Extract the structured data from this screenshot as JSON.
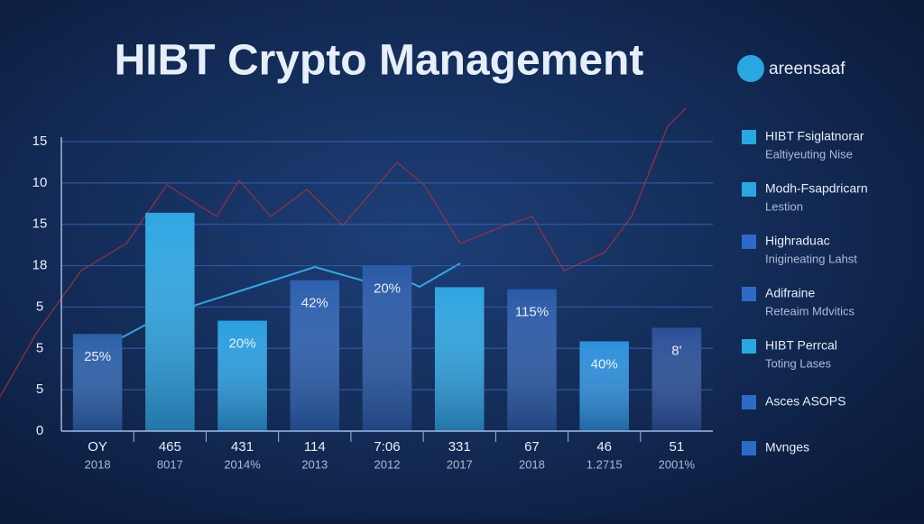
{
  "chart_data": {
    "type": "bar",
    "title": "HIBT Crypto Management",
    "brand": "areensaaf",
    "categories": [
      "OY",
      "465",
      "431",
      "114",
      "7:06",
      "331",
      "67",
      "46",
      "51"
    ],
    "sublabels": [
      "2018",
      "8017",
      "2014%",
      "2013",
      "2012",
      "2017",
      "2018",
      "1.2715",
      "2001%"
    ],
    "values": [
      2.35,
      5.28,
      2.67,
      3.65,
      4.0,
      3.48,
      3.43,
      2.17,
      2.5
    ],
    "bar_labels": [
      "25%",
      null,
      "20%",
      "42%",
      "20%",
      null,
      "115%",
      "40%",
      "8'"
    ],
    "colors": [
      "#2b5fa8",
      "#2ea6e2",
      "#2b9ee0",
      "#2c5fae",
      "#2a5aa6",
      "#2fa4e0",
      "#2b5aa6",
      "#2c8fdb",
      "#2a4f96"
    ],
    "ylim": [
      0,
      7
    ],
    "yticks": [
      {
        "value": 0,
        "label": "0"
      },
      {
        "value": 1,
        "label": "5"
      },
      {
        "value": 2,
        "label": "5"
      },
      {
        "value": 3,
        "label": "5"
      },
      {
        "value": 4,
        "label": "18"
      },
      {
        "value": 5,
        "label": "15"
      },
      {
        "value": 6,
        "label": "10"
      },
      {
        "value": 7,
        "label": "15"
      }
    ],
    "grid": true,
    "legend": [
      {
        "name": "HIBT Fsiglatnorar",
        "sub": "Ealtiyeuting Nise",
        "color": "#2aa7e0"
      },
      {
        "name": "Modh-Fsapdricarn",
        "sub": "Lestion",
        "color": "#2aa7e0"
      },
      {
        "name": "Highraduac",
        "sub": "Inigineating Lahst",
        "color": "#2c6bc8"
      },
      {
        "name": "Adifraine",
        "sub": "Reteaim Mdvitics",
        "color": "#2c6bc8"
      },
      {
        "name": "HIBT Perrcal",
        "sub": "Toting Lases",
        "color": "#2aa7e0"
      },
      {
        "name": "Asces ASOPS",
        "color": "#2c6bc8"
      },
      {
        "name": "Mvnges",
        "color": "#2c6bc8"
      }
    ]
  }
}
